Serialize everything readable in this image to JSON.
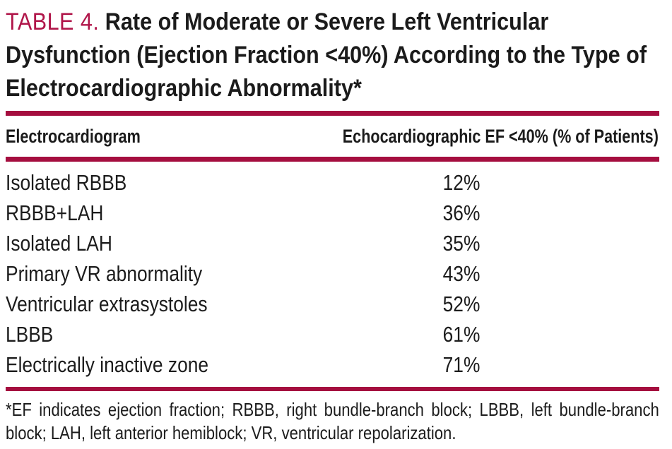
{
  "colors": {
    "accent_rule": "#A50E3F",
    "title_label": "#B01549",
    "text": "#1b1b1b"
  },
  "title": {
    "label": "TABLE 4.",
    "text": "Rate of Moderate or Severe Left Ventricular Dysfunction (Ejection Fraction <40%) According to the Type of Electrocardiographic Abnormality*"
  },
  "table": {
    "col_headers": [
      "Electrocardiogram",
      "Echocardiographic EF <40% (% of Patients)"
    ],
    "rows": [
      {
        "label": "Isolated RBBB",
        "value": "12%"
      },
      {
        "label": "RBBB+LAH",
        "value": "36%"
      },
      {
        "label": "Isolated LAH",
        "value": "35%"
      },
      {
        "label": "Primary VR abnormality",
        "value": "43%"
      },
      {
        "label": "Ventricular extrasystoles",
        "value": "52%"
      },
      {
        "label": "LBBB",
        "value": "61%"
      },
      {
        "label": "Electrically inactive zone",
        "value": "71%"
      }
    ]
  },
  "footnote": "*EF indicates ejection fraction; RBBB, right bundle-branch block; LBBB, left bundle-branch block; LAH, left anterior hemiblock; VR, ventricular repolarization."
}
